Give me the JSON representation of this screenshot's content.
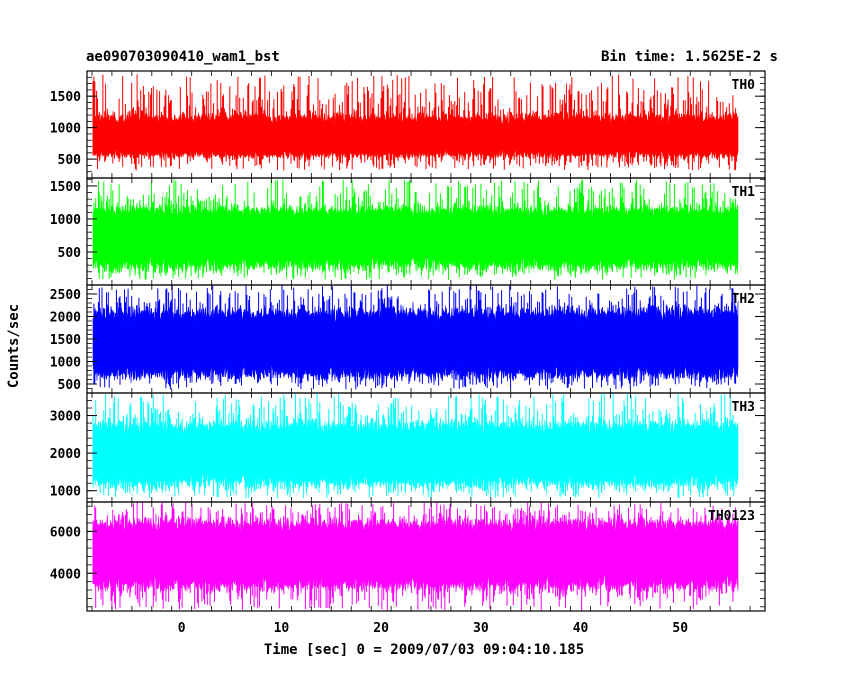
{
  "header": {
    "left_title": "ae090703090410_wam1_bst",
    "right_title": "Bin time: 1.5625E-2 s"
  },
  "xlabel": "Time [sec] 0 = 2009/07/03 09:04:10.185",
  "ylabel": "Counts/sec",
  "chart_data": {
    "type": "line",
    "x_range": [
      -8.9,
      55.8
    ],
    "xlim": [
      -9.5,
      58.5
    ],
    "x_ticks": [
      0,
      10,
      20,
      30,
      40,
      50
    ],
    "x_tick_labels": [
      "0",
      "10",
      "20",
      "30",
      "40",
      "50"
    ],
    "bin_time": 0.015625,
    "grid": false,
    "panels": [
      {
        "label": "TH0",
        "color": "#ff0000",
        "ylim": [
          200,
          1900
        ],
        "yticks": [
          500,
          1000,
          1500
        ],
        "ytick_labels": [
          "500",
          "1000",
          "1500"
        ],
        "mean": 820,
        "noise_low": 580,
        "noise_high": 1150,
        "peak_max": 1850,
        "trough_min": 320
      },
      {
        "label": "TH1",
        "color": "#00ff00",
        "ylim": [
          0,
          1620
        ],
        "yticks": [
          500,
          1000,
          1500
        ],
        "ytick_labels": [
          "500",
          "1000",
          "1500"
        ],
        "mean": 780,
        "noise_low": 320,
        "noise_high": 1120,
        "peak_max": 1600,
        "trough_min": 80
      },
      {
        "label": "TH2",
        "color": "#0000ff",
        "ylim": [
          300,
          2700
        ],
        "yticks": [
          500,
          1000,
          1500,
          2000,
          2500
        ],
        "ytick_labels": [
          "500",
          "1000",
          "1500",
          "2000",
          "2500"
        ],
        "mean": 1400,
        "noise_low": 750,
        "noise_high": 2050,
        "peak_max": 2700,
        "trough_min": 380
      },
      {
        "label": "TH3",
        "color": "#00ffff",
        "ylim": [
          700,
          3600
        ],
        "yticks": [
          1000,
          2000,
          3000
        ],
        "ytick_labels": [
          "1000",
          "2000",
          "3000"
        ],
        "mean": 2000,
        "noise_low": 1250,
        "noise_high": 2700,
        "peak_max": 3600,
        "trough_min": 800
      },
      {
        "label": "TH0123",
        "color": "#ff00ff",
        "ylim": [
          2200,
          7400
        ],
        "yticks": [
          4000,
          6000
        ],
        "ytick_labels": [
          "4000",
          "6000"
        ],
        "mean": 4900,
        "noise_low": 3500,
        "noise_high": 6300,
        "peak_max": 7400,
        "trough_min": 2200
      }
    ]
  }
}
